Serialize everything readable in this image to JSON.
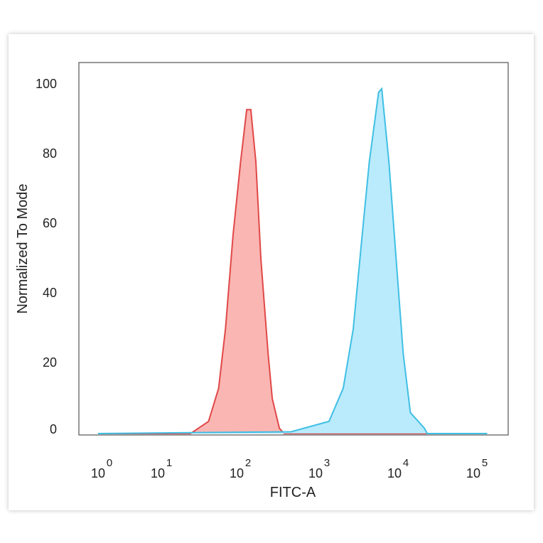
{
  "chart_data": {
    "type": "area",
    "title": "",
    "xlabel": "FITC-A",
    "ylabel": "Normalized To Mode",
    "x_scale": "log",
    "xlim": [
      1,
      150000
    ],
    "ylim": [
      0,
      100
    ],
    "grid": false,
    "legend": "none",
    "x_ticks": [
      {
        "base": "10",
        "exp": "0",
        "value": 1
      },
      {
        "base": "10",
        "exp": "1",
        "value": 10
      },
      {
        "base": "10",
        "exp": "2",
        "value": 100
      },
      {
        "base": "10",
        "exp": "3",
        "value": 1000
      },
      {
        "base": "10",
        "exp": "4",
        "value": 10000
      },
      {
        "base": "10",
        "exp": "5",
        "value": 100000
      }
    ],
    "y_ticks": [
      "0",
      "20",
      "40",
      "60",
      "80",
      "100"
    ],
    "series": [
      {
        "color": "#e04848",
        "fill": "#f9a9a6",
        "points": [
          [
            1,
            0
          ],
          [
            26,
            0
          ],
          [
            44,
            3.5
          ],
          [
            59,
            13
          ],
          [
            72,
            30
          ],
          [
            90,
            57
          ],
          [
            112,
            78
          ],
          [
            134,
            93
          ],
          [
            151,
            93
          ],
          [
            175,
            78
          ],
          [
            203,
            50
          ],
          [
            250,
            23
          ],
          [
            283,
            10
          ],
          [
            348,
            1.5
          ],
          [
            400,
            0
          ],
          [
            150000,
            0
          ]
        ]
      },
      {
        "color": "#3fbfe4",
        "fill": "#aee8fb",
        "points": [
          [
            1,
            0
          ],
          [
            490,
            0.5
          ],
          [
            1480,
            3.5
          ],
          [
            2240,
            13
          ],
          [
            3000,
            30
          ],
          [
            3900,
            57
          ],
          [
            4800,
            78
          ],
          [
            6300,
            98
          ],
          [
            6900,
            99
          ],
          [
            8500,
            78
          ],
          [
            10500,
            50
          ],
          [
            12900,
            23
          ],
          [
            15900,
            6
          ],
          [
            24000,
            1.5
          ],
          [
            26000,
            0
          ],
          [
            150000,
            0
          ]
        ]
      }
    ]
  }
}
